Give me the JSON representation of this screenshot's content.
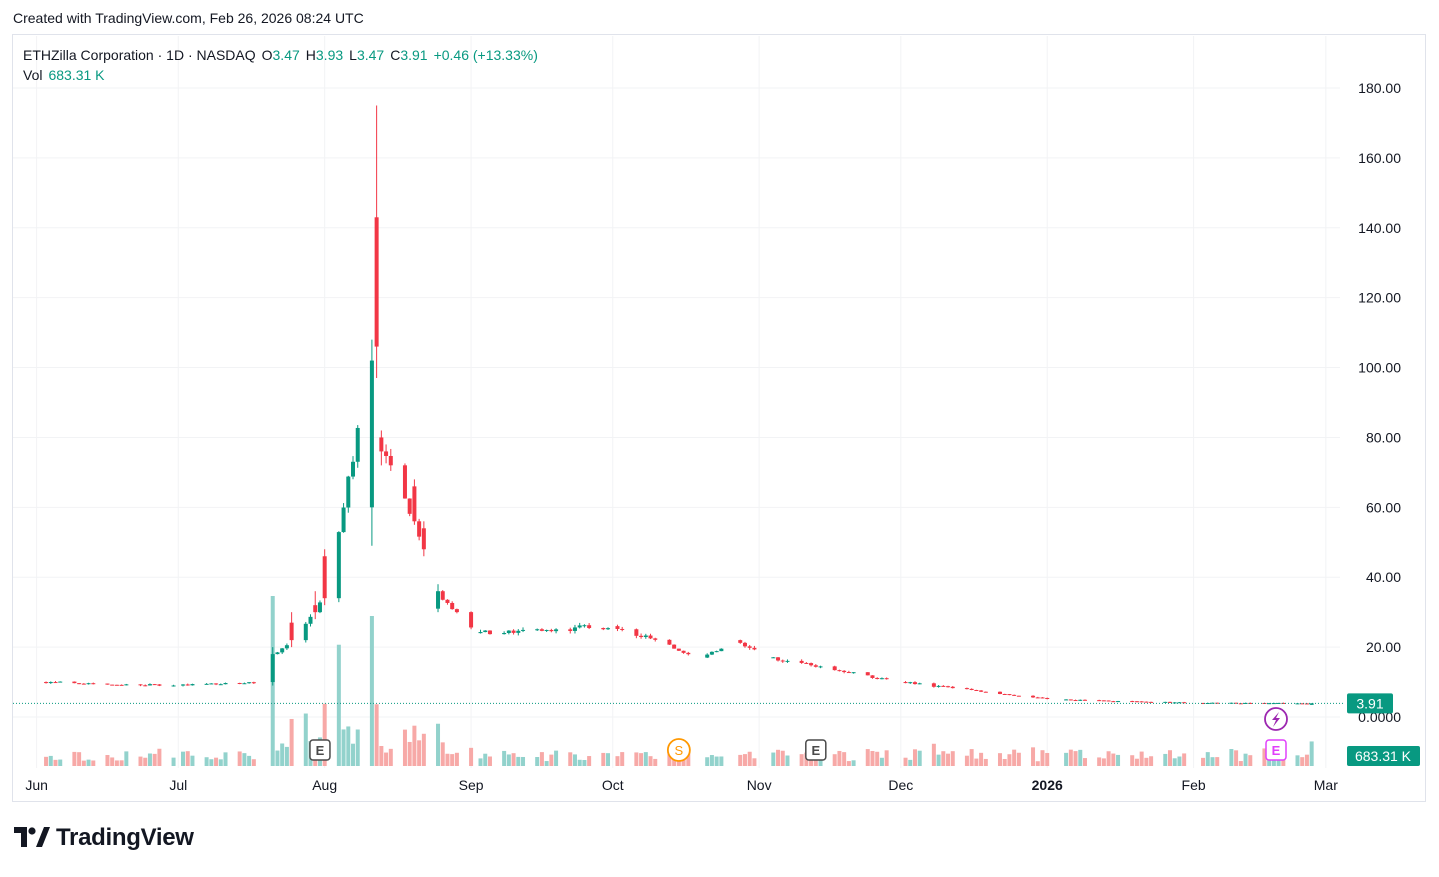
{
  "header": {
    "created_text": "Created with TradingView.com, Feb 26, 2026 08:24 UTC"
  },
  "legend": {
    "symbol": "ETHZilla Corporation · 1D · NASDAQ",
    "o_label": "O",
    "o_value": "3.47",
    "h_label": "H",
    "h_value": "3.93",
    "l_label": "L",
    "l_value": "3.47",
    "c_label": "C",
    "c_value": "3.91",
    "change": "+0.46 (+13.33%)",
    "vol_label": "Vol",
    "vol_value": "683.31 K"
  },
  "footer": {
    "logo_text": "TradingView"
  },
  "colors": {
    "up": "#089981",
    "down": "#f23645",
    "vol_up": "#92d2cc",
    "vol_down": "#f7a9a7",
    "grid": "#f2f3f5",
    "text": "#131722",
    "last_price_badge": "#089981"
  },
  "chart_data": {
    "type": "candlestick",
    "y_axis": {
      "ticks": [
        "180.00",
        "160.00",
        "140.00",
        "120.00",
        "100.00",
        "80.00",
        "60.00",
        "40.00",
        "20.00",
        "0.0000"
      ],
      "tick_values": [
        180,
        160,
        140,
        120,
        100,
        80,
        60,
        40,
        20,
        0
      ],
      "range": [
        0,
        180
      ]
    },
    "x_axis": {
      "labels": [
        "Jun",
        "Jul",
        "Aug",
        "Sep",
        "Oct",
        "Nov",
        "Dec",
        "2026",
        "Feb",
        "Mar"
      ],
      "bold": [
        false,
        false,
        false,
        false,
        false,
        false,
        false,
        true,
        false,
        false
      ]
    },
    "last_price": "3.91",
    "last_volume": "683.31 K",
    "events": [
      {
        "type": "earnings",
        "icon": "E",
        "date": "2025-07-31"
      },
      {
        "type": "split",
        "icon": "S",
        "date": "2025-10-15"
      },
      {
        "type": "earnings",
        "icon": "E",
        "date": "2025-11-13"
      },
      {
        "type": "dividend",
        "icon": "lightning",
        "date": "2026-02-26"
      },
      {
        "type": "earnings-upcoming",
        "icon": "E",
        "date": "2026-02-26"
      }
    ],
    "daily_ohlc_anchors": [
      {
        "date": "2025-06-02",
        "close": 10
      },
      {
        "date": "2025-07-01",
        "close": 9
      },
      {
        "date": "2025-07-18",
        "close": 10
      },
      {
        "date": "2025-07-21",
        "open": 10,
        "high": 20,
        "low": 9,
        "close": 18
      },
      {
        "date": "2025-07-25",
        "open": 27,
        "high": 30,
        "low": 20,
        "close": 22
      },
      {
        "date": "2025-07-30",
        "open": 32,
        "high": 36,
        "low": 28,
        "close": 30
      },
      {
        "date": "2025-08-01",
        "open": 46,
        "high": 48,
        "low": 32,
        "close": 34
      },
      {
        "date": "2025-08-11",
        "open": 60,
        "high": 108,
        "low": 49,
        "close": 102
      },
      {
        "date": "2025-08-12",
        "open": 143,
        "high": 175,
        "low": 97,
        "close": 106
      },
      {
        "date": "2025-08-13",
        "open": 80,
        "high": 82,
        "low": 72,
        "close": 76
      },
      {
        "date": "2025-08-20",
        "open": 66,
        "high": 68,
        "low": 55,
        "close": 56
      },
      {
        "date": "2025-08-22",
        "open": 54,
        "high": 56,
        "low": 46,
        "close": 48
      },
      {
        "date": "2025-08-25",
        "open": 31,
        "high": 38,
        "low": 30,
        "close": 36
      },
      {
        "date": "2025-09-02",
        "close": 24
      },
      {
        "date": "2025-10-01",
        "close": 26
      },
      {
        "date": "2025-10-20",
        "close": 17
      },
      {
        "date": "2025-10-27",
        "close": 22
      },
      {
        "date": "2025-11-03",
        "close": 17
      },
      {
        "date": "2025-12-01",
        "close": 10
      },
      {
        "date": "2026-01-02",
        "close": 5
      },
      {
        "date": "2026-02-02",
        "close": 4
      },
      {
        "date": "2026-02-26",
        "open": 3.47,
        "high": 3.93,
        "low": 3.47,
        "close": 3.91
      }
    ]
  }
}
